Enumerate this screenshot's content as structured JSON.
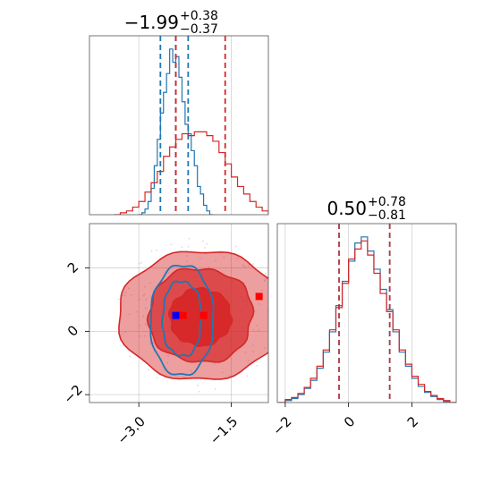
{
  "chart_data": [
    {
      "type": "histogram",
      "panel": "marginal-x",
      "title": {
        "main": "−1.99",
        "sup": "+0.38",
        "sub": "−0.37"
      },
      "grid": true,
      "xlim": [
        -3.8,
        -0.9
      ],
      "series": [
        {
          "color": "#1f77b4",
          "bins": [
            [
              -3.0,
              0
            ],
            [
              -2.95,
              2
            ],
            [
              -2.9,
              6
            ],
            [
              -2.85,
              14
            ],
            [
              -2.8,
              28
            ],
            [
              -2.75,
              52
            ],
            [
              -2.7,
              80
            ],
            [
              -2.65,
              108
            ],
            [
              -2.6,
              130
            ],
            [
              -2.55,
              150
            ],
            [
              -2.5,
              176
            ],
            [
              -2.45,
              162
            ],
            [
              -2.4,
              168
            ],
            [
              -2.35,
              146
            ],
            [
              -2.3,
              120
            ],
            [
              -2.25,
              96
            ],
            [
              -2.2,
              86
            ],
            [
              -2.15,
              68
            ],
            [
              -2.1,
              52
            ],
            [
              -2.05,
              30
            ],
            [
              -2.0,
              22
            ],
            [
              -1.95,
              10
            ],
            [
              -1.9,
              4
            ],
            [
              -1.85,
              0
            ]
          ],
          "quantile_lines": [
            -2.65,
            -2.4,
            -2.2
          ]
        },
        {
          "color": "#d62728",
          "bins": [
            [
              -3.4,
              0
            ],
            [
              -3.3,
              2
            ],
            [
              -3.2,
              4
            ],
            [
              -3.1,
              8
            ],
            [
              -3.0,
              14
            ],
            [
              -2.9,
              24
            ],
            [
              -2.8,
              34
            ],
            [
              -2.7,
              46
            ],
            [
              -2.6,
              62
            ],
            [
              -2.5,
              72
            ],
            [
              -2.4,
              80
            ],
            [
              -2.3,
              86
            ],
            [
              -2.2,
              84
            ],
            [
              -2.1,
              88
            ],
            [
              -2.0,
              88
            ],
            [
              -1.9,
              84
            ],
            [
              -1.8,
              78
            ],
            [
              -1.7,
              66
            ],
            [
              -1.6,
              54
            ],
            [
              -1.5,
              40
            ],
            [
              -1.4,
              30
            ],
            [
              -1.3,
              22
            ],
            [
              -1.2,
              14
            ],
            [
              -1.1,
              8
            ],
            [
              -1.0,
              4
            ]
          ],
          "quantile_lines": [
            -2.4,
            -1.6
          ]
        }
      ]
    },
    {
      "type": "contour",
      "panel": "joint",
      "grid": true,
      "xlim": [
        -3.8,
        -0.9
      ],
      "ylim": [
        -2.25,
        3.4
      ],
      "xticks": [
        "−3.0",
        "−1.5"
      ],
      "yticks": [
        "−2",
        "0",
        "2"
      ],
      "xtick_values": [
        -3.0,
        -1.5
      ],
      "ytick_values": [
        -2,
        0,
        2
      ],
      "series": [
        {
          "color": "#d62728",
          "style": "filled",
          "levels": [
            {
              "cx": -2.0,
              "cy": 0.5,
              "rx": 1.3,
              "ry": 2.1,
              "opacity": 0.45
            },
            {
              "cx": -2.0,
              "cy": 0.5,
              "rx": 0.85,
              "ry": 1.5,
              "opacity": 0.7
            },
            {
              "cx": -2.0,
              "cy": 0.45,
              "rx": 0.5,
              "ry": 0.9,
              "opacity": 0.95
            }
          ]
        },
        {
          "color": "#1f77b4",
          "style": "lines",
          "levels": [
            {
              "cx": -2.3,
              "cy": 0.35,
              "rx": 0.5,
              "ry": 1.8
            },
            {
              "cx": -2.3,
              "cy": 0.4,
              "rx": 0.32,
              "ry": 1.2
            }
          ]
        }
      ],
      "markers": [
        {
          "x": -2.4,
          "y": 0.5,
          "color": "#0000ff"
        },
        {
          "x": -2.28,
          "y": 0.5,
          "color": "#ff0000"
        },
        {
          "x": -1.95,
          "y": 0.5,
          "color": "#ff0000"
        },
        {
          "x": -1.05,
          "y": 1.1,
          "color": "#ff0000"
        }
      ]
    },
    {
      "type": "histogram",
      "panel": "marginal-y",
      "title": {
        "main": "0.50",
        "sup": "+0.78",
        "sub": "−0.81"
      },
      "grid": true,
      "xlim": [
        -2.25,
        3.4
      ],
      "xticks": [
        "−2",
        "0",
        "2"
      ],
      "xtick_values": [
        -2,
        0,
        2
      ],
      "series": [
        {
          "color": "#1f77b4",
          "bins": [
            [
              -2.2,
              0
            ],
            [
              -2.0,
              2
            ],
            [
              -1.8,
              4
            ],
            [
              -1.6,
              8
            ],
            [
              -1.4,
              14
            ],
            [
              -1.2,
              22
            ],
            [
              -1.0,
              34
            ],
            [
              -0.8,
              50
            ],
            [
              -0.6,
              70
            ],
            [
              -0.4,
              96
            ],
            [
              -0.2,
              120
            ],
            [
              0.0,
              140
            ],
            [
              0.2,
              158
            ],
            [
              0.4,
              164
            ],
            [
              0.6,
              150
            ],
            [
              0.8,
              132
            ],
            [
              1.0,
              112
            ],
            [
              1.2,
              92
            ],
            [
              1.4,
              70
            ],
            [
              1.6,
              50
            ],
            [
              1.8,
              36
            ],
            [
              2.0,
              24
            ],
            [
              2.2,
              16
            ],
            [
              2.4,
              10
            ],
            [
              2.6,
              6
            ],
            [
              2.8,
              3
            ],
            [
              3.0,
              1
            ],
            [
              3.2,
              0
            ]
          ],
          "quantile_lines": [
            -0.3,
            1.3
          ]
        },
        {
          "color": "#d62728",
          "bins": [
            [
              -2.2,
              0
            ],
            [
              -2.0,
              3
            ],
            [
              -1.8,
              5
            ],
            [
              -1.6,
              9
            ],
            [
              -1.4,
              15
            ],
            [
              -1.2,
              24
            ],
            [
              -1.0,
              36
            ],
            [
              -0.8,
              52
            ],
            [
              -0.6,
              72
            ],
            [
              -0.4,
              94
            ],
            [
              -0.2,
              118
            ],
            [
              0.0,
              142
            ],
            [
              0.2,
              152
            ],
            [
              0.4,
              160
            ],
            [
              0.6,
              146
            ],
            [
              0.8,
              128
            ],
            [
              1.0,
              108
            ],
            [
              1.2,
              90
            ],
            [
              1.4,
              72
            ],
            [
              1.6,
              52
            ],
            [
              1.8,
              38
            ],
            [
              2.0,
              26
            ],
            [
              2.2,
              18
            ],
            [
              2.4,
              11
            ],
            [
              2.6,
              7
            ],
            [
              2.8,
              4
            ],
            [
              3.0,
              2
            ],
            [
              3.2,
              0
            ]
          ],
          "quantile_lines": [
            -0.3,
            1.3
          ]
        }
      ]
    }
  ]
}
